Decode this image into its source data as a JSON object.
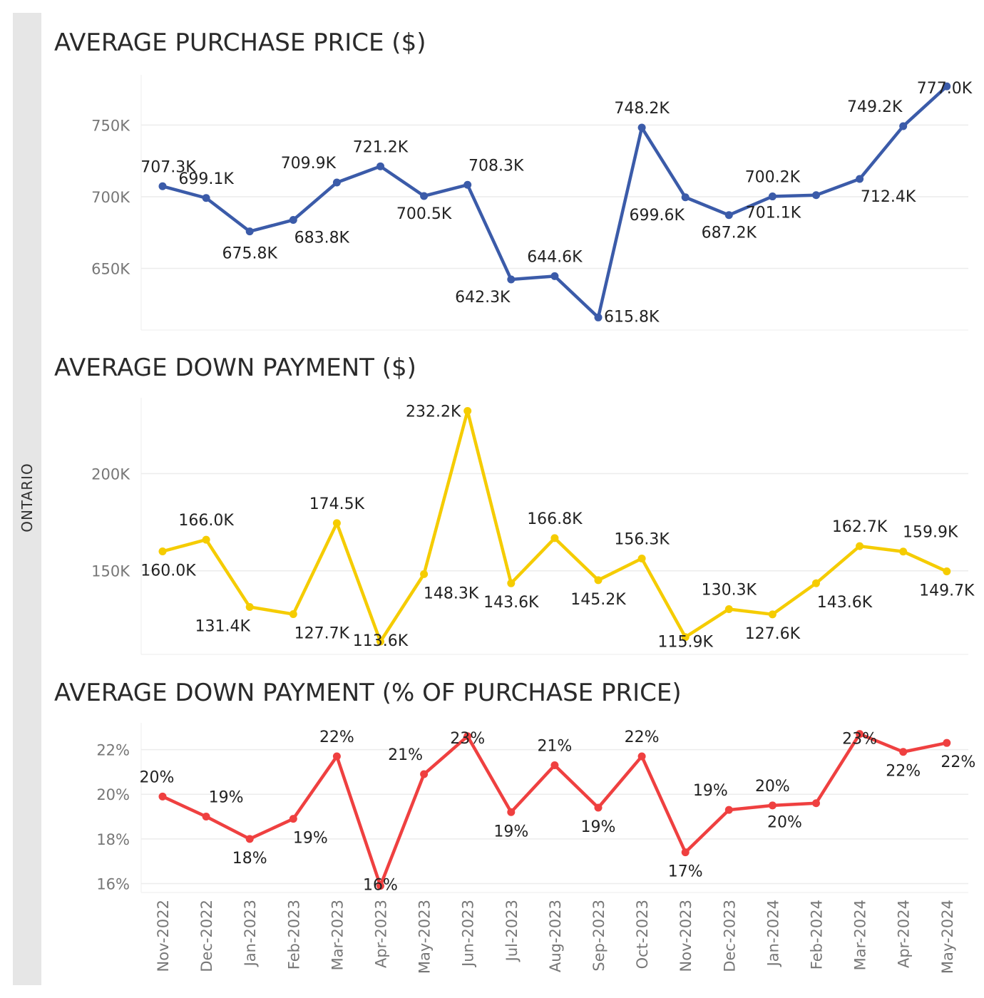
{
  "region_label": "ONTARIO",
  "chart_data": [
    {
      "type": "line",
      "title": "AVERAGE PURCHASE PRICE ($)",
      "color": "#3b5ba9",
      "x": [
        "Nov-2022",
        "Dec-2022",
        "Jan-2023",
        "Feb-2023",
        "Mar-2023",
        "Apr-2023",
        "May-2023",
        "Jun-2023",
        "Jul-2023",
        "Aug-2023",
        "Sep-2023",
        "Oct-2023",
        "Nov-2023",
        "Dec-2023",
        "Jan-2024",
        "Feb-2024",
        "Mar-2024",
        "Apr-2024",
        "May-2024"
      ],
      "values": [
        707.3,
        699.1,
        675.8,
        683.8,
        709.9,
        721.2,
        700.5,
        708.3,
        642.3,
        644.6,
        615.8,
        748.2,
        699.6,
        687.2,
        700.2,
        701.1,
        712.4,
        749.2,
        777.0
      ],
      "value_labels": [
        "707.3K",
        "699.1K",
        "675.8K",
        "683.8K",
        "709.9K",
        "721.2K",
        "700.5K",
        "708.3K",
        "642.3K",
        "644.6K",
        "615.8K",
        "748.2K",
        "699.6K",
        "687.2K",
        "700.2K",
        "701.1K",
        "712.4K",
        "749.2K",
        "777.0K"
      ],
      "yticks": [
        "650K",
        "700K",
        "750K"
      ],
      "ytick_values": [
        650,
        700,
        750
      ],
      "ylim": [
        607,
        785
      ],
      "grid": true
    },
    {
      "type": "line",
      "title": "AVERAGE DOWN PAYMENT ($)",
      "color": "#f5cc00",
      "x": [
        "Nov-2022",
        "Dec-2022",
        "Jan-2023",
        "Feb-2023",
        "Mar-2023",
        "Apr-2023",
        "May-2023",
        "Jun-2023",
        "Jul-2023",
        "Aug-2023",
        "Sep-2023",
        "Oct-2023",
        "Nov-2023",
        "Dec-2023",
        "Jan-2024",
        "Feb-2024",
        "Mar-2024",
        "Apr-2024",
        "May-2024"
      ],
      "values": [
        160.0,
        166.0,
        131.4,
        127.7,
        174.5,
        113.6,
        148.3,
        232.2,
        143.6,
        166.8,
        145.2,
        156.3,
        115.9,
        130.3,
        127.6,
        143.6,
        162.7,
        159.9,
        149.7
      ],
      "value_labels": [
        "160.0K",
        "166.0K",
        "131.4K",
        "127.7K",
        "174.5K",
        "113.6K",
        "148.3K",
        "232.2K",
        "143.6K",
        "166.8K",
        "145.2K",
        "156.3K",
        "115.9K",
        "130.3K",
        "127.6K",
        "143.6K",
        "162.7K",
        "159.9K",
        "149.7K"
      ],
      "yticks": [
        "150K",
        "200K"
      ],
      "ytick_values": [
        150,
        200
      ],
      "ylim": [
        107,
        239
      ],
      "grid": true
    },
    {
      "type": "line",
      "title": "AVERAGE DOWN PAYMENT (% OF PURCHASE PRICE)",
      "color": "#ef4040",
      "x": [
        "Nov-2022",
        "Dec-2022",
        "Jan-2023",
        "Feb-2023",
        "Mar-2023",
        "Apr-2023",
        "May-2023",
        "Jun-2023",
        "Jul-2023",
        "Aug-2023",
        "Sep-2023",
        "Oct-2023",
        "Nov-2023",
        "Dec-2023",
        "Jan-2024",
        "Feb-2024",
        "Mar-2024",
        "Apr-2024",
        "May-2024"
      ],
      "values": [
        19.9,
        19.0,
        18.0,
        18.9,
        21.7,
        15.9,
        20.9,
        22.6,
        19.2,
        21.3,
        19.4,
        21.7,
        17.4,
        19.3,
        19.5,
        19.6,
        22.7,
        21.9,
        22.3
      ],
      "value_labels": [
        "20%",
        "19%",
        "18%",
        "19%",
        "22%",
        "16%",
        "21%",
        "23%",
        "19%",
        "21%",
        "19%",
        "22%",
        "17%",
        "19%",
        "20%",
        "20%",
        "23%",
        "22%",
        "22%"
      ],
      "yticks": [
        "16%",
        "18%",
        "20%",
        "22%"
      ],
      "ytick_values": [
        16,
        18,
        20,
        22
      ],
      "ylim": [
        15.6,
        23.2
      ],
      "grid": true
    }
  ]
}
